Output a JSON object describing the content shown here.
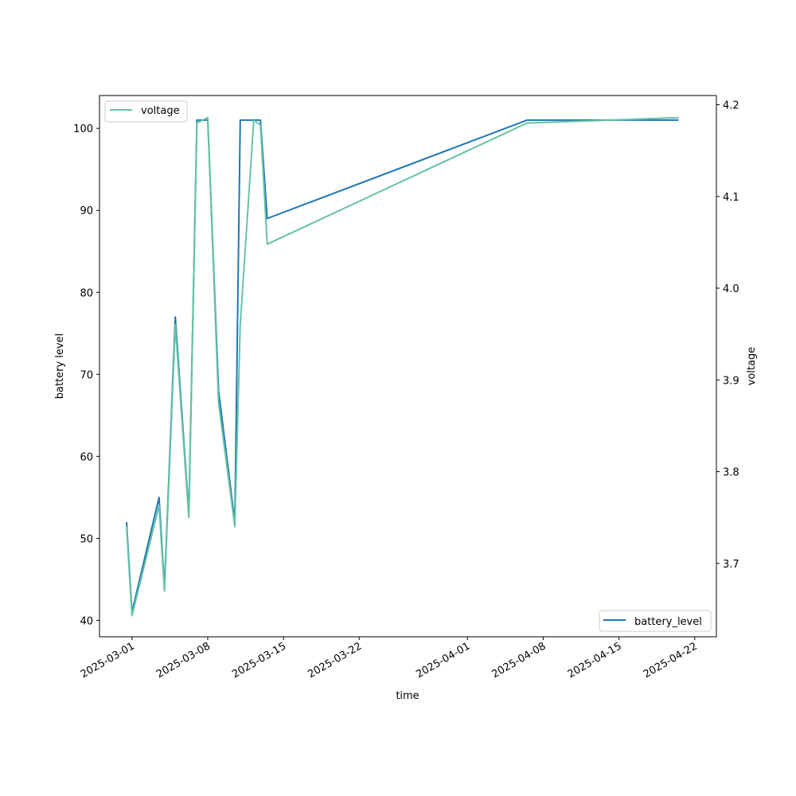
{
  "chart_data": {
    "type": "line",
    "xlabel": "time",
    "ylabel_left": "battery level",
    "ylabel_right": "voltage",
    "x_tick_labels": [
      "2025-03-01",
      "2025-03-08",
      "2025-03-15",
      "2025-03-22",
      "2025-04-01",
      "2025-04-08",
      "2025-04-15",
      "2025-04-22"
    ],
    "y_left_ticks": [
      40,
      50,
      60,
      70,
      80,
      90,
      100
    ],
    "y_right_ticks": [
      3.7,
      3.8,
      3.9,
      4.0,
      4.1,
      4.2
    ],
    "y_left_range": [
      38,
      104
    ],
    "y_right_range": [
      3.62,
      4.21
    ],
    "x_range": [
      "2025-02-26",
      "2025-04-24"
    ],
    "legend_left": {
      "label": "voltage",
      "placement": "upper left"
    },
    "legend_right": {
      "label": "battery_level",
      "placement": "lower right"
    },
    "series": [
      {
        "name": "battery_level",
        "axis": "left",
        "color": "#1f77b4",
        "points": [
          {
            "x": "2025-02-28T12:00",
            "y": 52
          },
          {
            "x": "2025-02-29T00:00",
            "y": 41
          },
          {
            "x": "2025-03-03T12:00",
            "y": 55
          },
          {
            "x": "2025-03-04T00:00",
            "y": 44
          },
          {
            "x": "2025-03-05T00:00",
            "y": 77
          },
          {
            "x": "2025-03-06T06:00",
            "y": 53
          },
          {
            "x": "2025-03-07T00:00",
            "y": 101
          },
          {
            "x": "2025-03-08T00:00",
            "y": 101
          },
          {
            "x": "2025-03-09T00:00",
            "y": 68
          },
          {
            "x": "2025-03-10T12:00",
            "y": 52
          },
          {
            "x": "2025-03-11T00:00",
            "y": 101
          },
          {
            "x": "2025-03-12T21:00",
            "y": 101
          },
          {
            "x": "2025-03-13T12:00",
            "y": 89
          },
          {
            "x": "2025-04-06T12:00",
            "y": 101
          },
          {
            "x": "2025-04-20T12:00",
            "y": 101
          }
        ]
      },
      {
        "name": "voltage",
        "axis": "right",
        "color": "#66c2a5",
        "points": [
          {
            "x": "2025-02-28T12:00",
            "y": 3.74
          },
          {
            "x": "2025-02-29T00:00",
            "y": 3.643
          },
          {
            "x": "2025-03-03T12:00",
            "y": 3.763
          },
          {
            "x": "2025-03-04T00:00",
            "y": 3.67
          },
          {
            "x": "2025-03-05T00:00",
            "y": 3.96
          },
          {
            "x": "2025-03-06T06:00",
            "y": 3.75
          },
          {
            "x": "2025-03-07T00:00",
            "y": 4.18
          },
          {
            "x": "2025-03-07T12:00",
            "y": 4.183
          },
          {
            "x": "2025-03-08T00:00",
            "y": 4.186
          },
          {
            "x": "2025-03-09T00:00",
            "y": 3.875
          },
          {
            "x": "2025-03-10T12:00",
            "y": 3.74
          },
          {
            "x": "2025-03-11T00:00",
            "y": 3.96
          },
          {
            "x": "2025-03-12T06:00",
            "y": 4.183
          },
          {
            "x": "2025-03-12T21:00",
            "y": 4.178
          },
          {
            "x": "2025-03-13T12:00",
            "y": 4.048
          },
          {
            "x": "2025-04-06T12:00",
            "y": 4.18
          },
          {
            "x": "2025-04-20T12:00",
            "y": 4.186
          }
        ]
      }
    ]
  }
}
